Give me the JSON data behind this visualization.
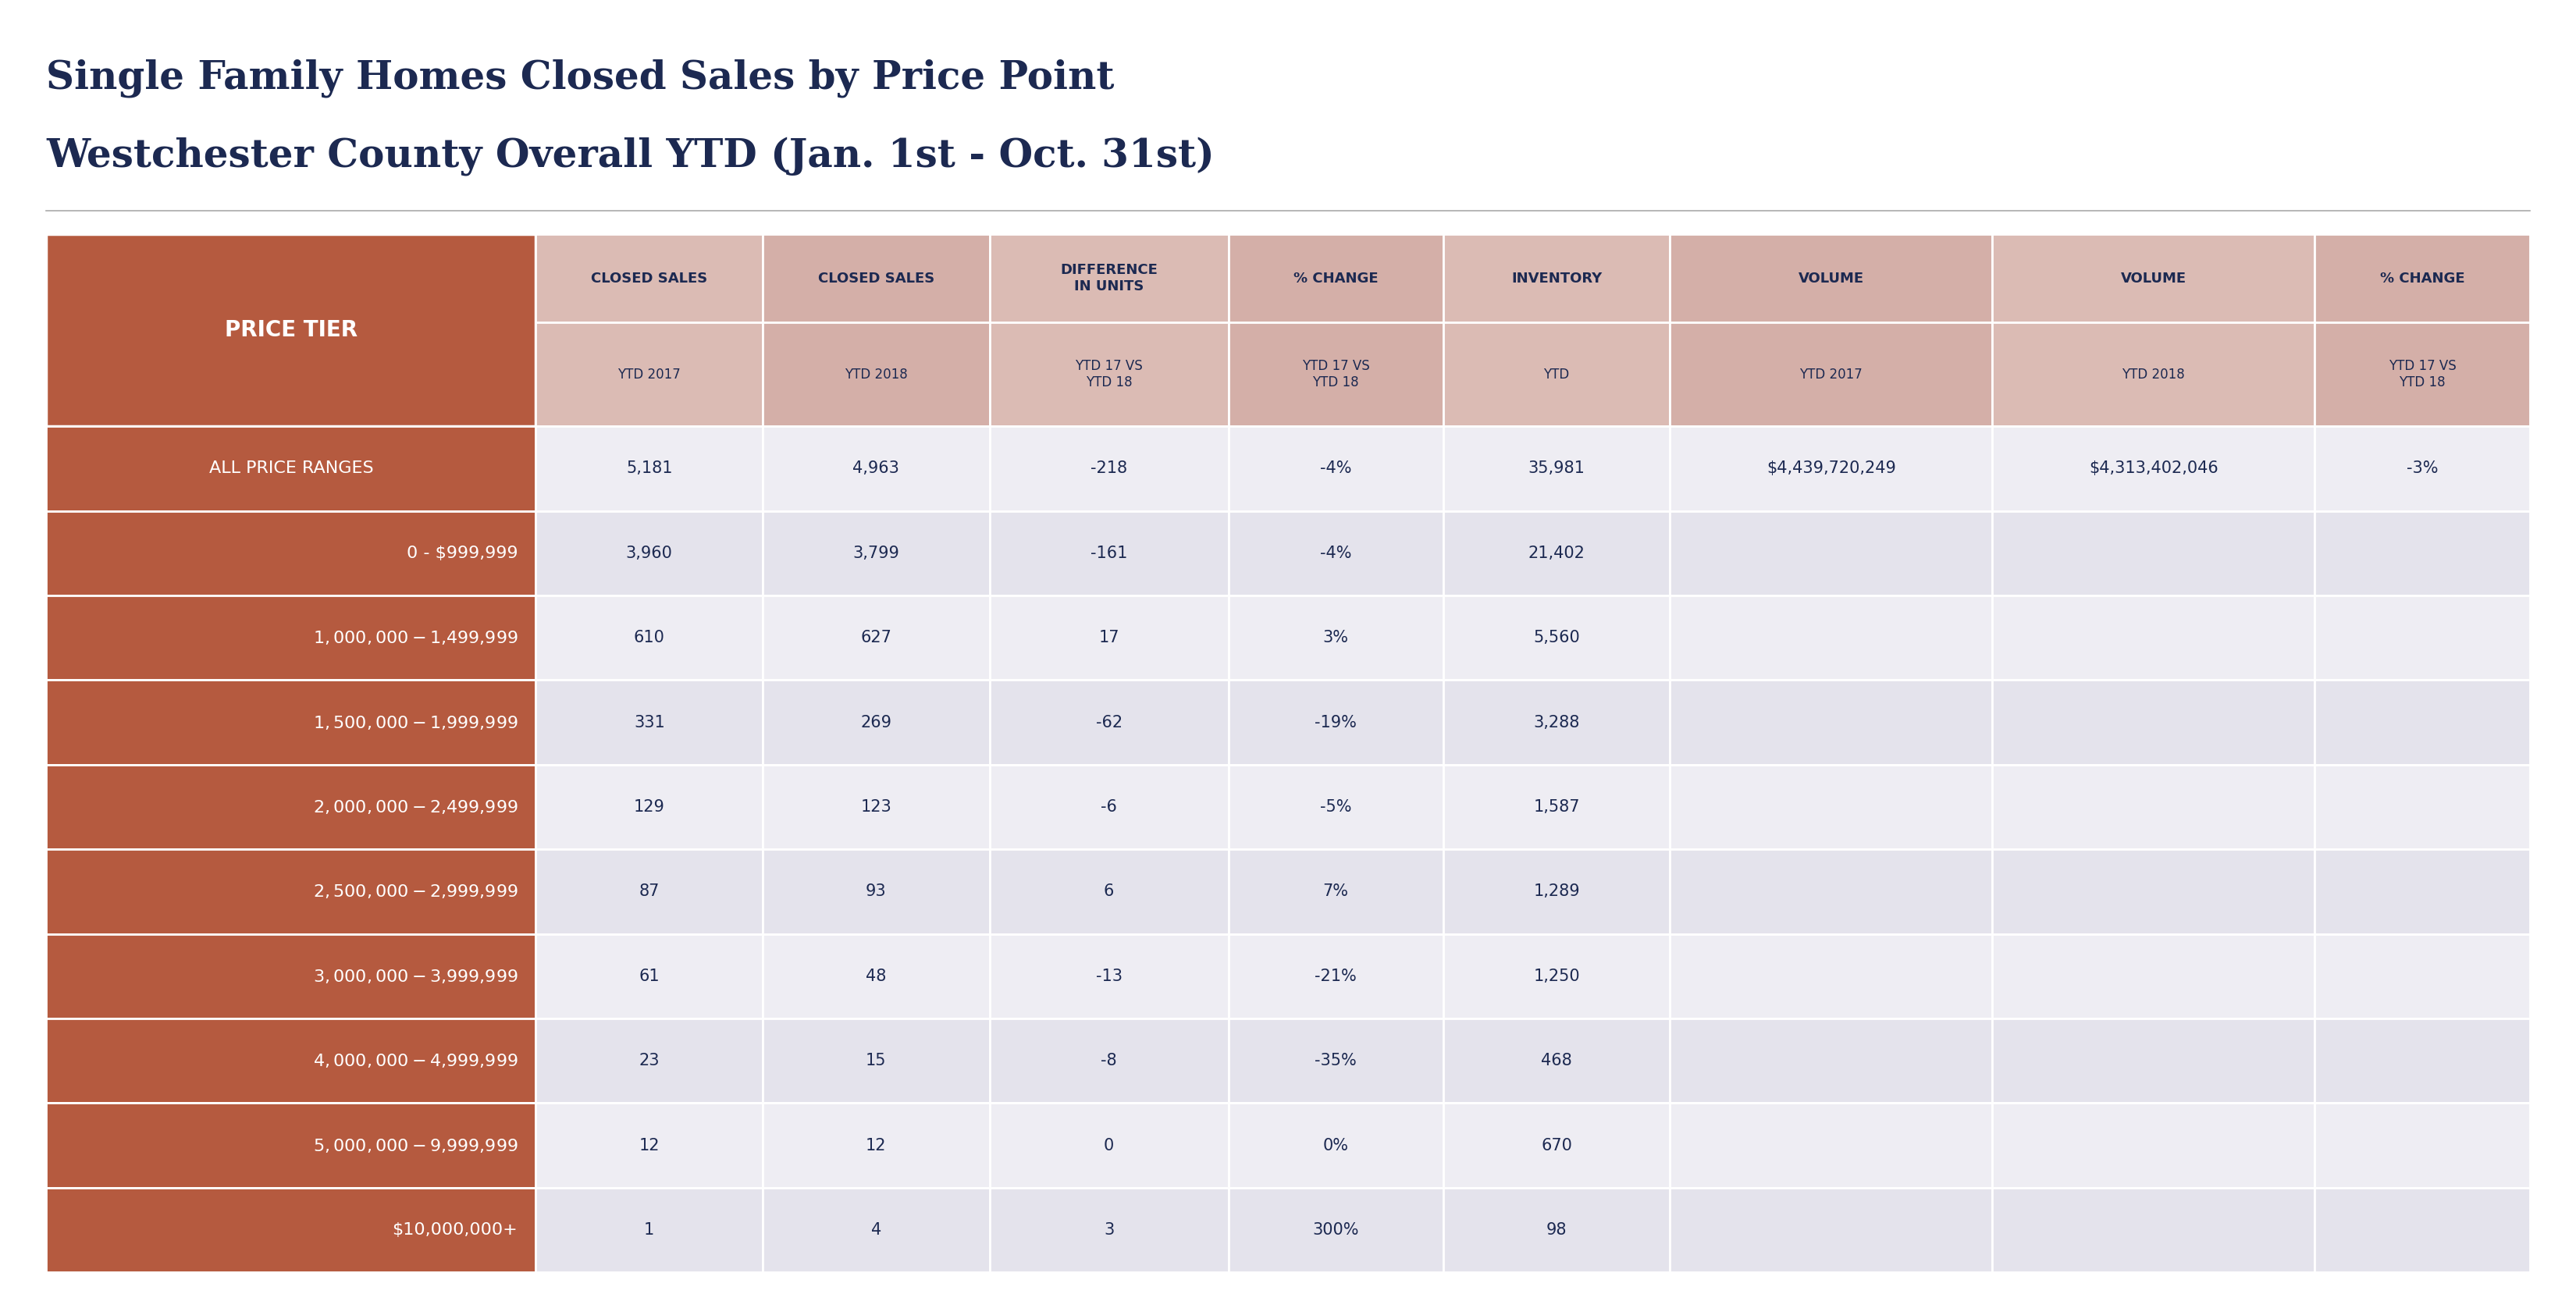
{
  "title_line1": "Single Family Homes Closed Sales by Price Point",
  "title_line2": "Westchester County Overall YTD (Jan. 1st - Oct. 31st)",
  "title_color": "#1c2951",
  "title_fontsize": 36,
  "bg_color": "#ffffff",
  "col_header_top": [
    "CLOSED SALES",
    "CLOSED SALES",
    "DIFFERENCE\nIN UNITS",
    "% CHANGE",
    "INVENTORY",
    "VOLUME",
    "VOLUME",
    "% CHANGE"
  ],
  "col_header_bot": [
    "YTD 2017",
    "YTD 2018",
    "YTD 17 VS\nYTD 18",
    "YTD 17 VS\nYTD 18",
    "YTD",
    "YTD 2017",
    "YTD 2018",
    "YTD 17 VS\nYTD 18"
  ],
  "row_header": [
    "ALL PRICE RANGES",
    "0 - $999,999",
    "$1,000,000 - $1,499,999",
    "$1,500,000 - $1,999,999",
    "$2,000,000 - $2,499,999",
    "$2,500,000 - $2,999,999",
    "$3,000,000 - $3,999,999",
    "$4,000,000 - $4,999,999",
    "$5,000,000 - $9,999,999",
    "$10,000,000+"
  ],
  "row_header_align": [
    "center",
    "right",
    "right",
    "right",
    "right",
    "right",
    "right",
    "right",
    "right",
    "right"
  ],
  "table_data": [
    [
      "5,181",
      "4,963",
      "-218",
      "-4%",
      "35,981",
      "$4,439,720,249",
      "$4,313,402,046",
      "-3%"
    ],
    [
      "3,960",
      "3,799",
      "-161",
      "-4%",
      "21,402",
      "",
      "",
      ""
    ],
    [
      "610",
      "627",
      "17",
      "3%",
      "5,560",
      "",
      "",
      ""
    ],
    [
      "331",
      "269",
      "-62",
      "-19%",
      "3,288",
      "",
      "",
      ""
    ],
    [
      "129",
      "123",
      "-6",
      "-5%",
      "1,587",
      "",
      "",
      ""
    ],
    [
      "87",
      "93",
      "6",
      "7%",
      "1,289",
      "",
      "",
      ""
    ],
    [
      "61",
      "48",
      "-13",
      "-21%",
      "1,250",
      "",
      "",
      ""
    ],
    [
      "23",
      "15",
      "-8",
      "-35%",
      "468",
      "",
      "",
      ""
    ],
    [
      "12",
      "12",
      "0",
      "0%",
      "670",
      "",
      "",
      ""
    ],
    [
      "1",
      "4",
      "3",
      "300%",
      "98",
      "",
      "",
      ""
    ]
  ],
  "price_tier_header_color": "#b55a3f",
  "row_header_color": "#b55a3f",
  "col_header_bg": "#dbbbb4",
  "col_header_bg_alt": "#d4afa8",
  "data_bg_light": "#eeedf3",
  "data_bg_dark": "#e4e3ec",
  "header_text_color": "#1c2951",
  "row_header_text_color": "#ffffff",
  "data_text_color": "#1c2951",
  "border_color": "#ffffff",
  "divider_color": "#aaaaaa",
  "price_tier_label": "PRICE TIER"
}
